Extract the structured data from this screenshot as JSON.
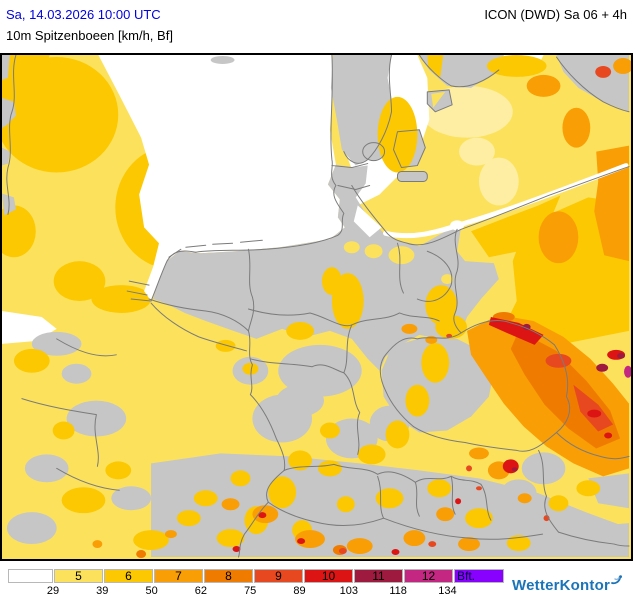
{
  "header": {
    "datetime": "Sa, 14.03.2026 10:00 UTC",
    "variable": "10m Spitzenboeen [km/h, Bf]",
    "model": "ICON (DWD) Sa 06 + 4h"
  },
  "map": {
    "sea_color": "#FFFFFF",
    "calm_land_color": "#C6C6C6",
    "border_line_color": "#7B7B7B",
    "title_color": "#0202DD"
  },
  "legend": {
    "unit_label": "Bft.",
    "classes": [
      {
        "bf": "",
        "color": "#FFFFFF"
      },
      {
        "bf": "5",
        "color": "#FCE25C"
      },
      {
        "bf": "6",
        "color": "#FCC802"
      },
      {
        "bf": "7",
        "color": "#F99E05"
      },
      {
        "bf": "8",
        "color": "#EF7C00"
      },
      {
        "bf": "9",
        "color": "#E8481F"
      },
      {
        "bf": "10",
        "color": "#DC1414"
      },
      {
        "bf": "11",
        "color": "#9E1B3F"
      },
      {
        "bf": "12",
        "color": "#C42781"
      },
      {
        "bf": "Bft.",
        "color": "#8800FE",
        "is_unit": true
      }
    ],
    "kmh_ticks": [
      "29",
      "39",
      "50",
      "62",
      "75",
      "89",
      "103",
      "118",
      "134"
    ]
  },
  "branding": {
    "name": "WetterKontor"
  }
}
